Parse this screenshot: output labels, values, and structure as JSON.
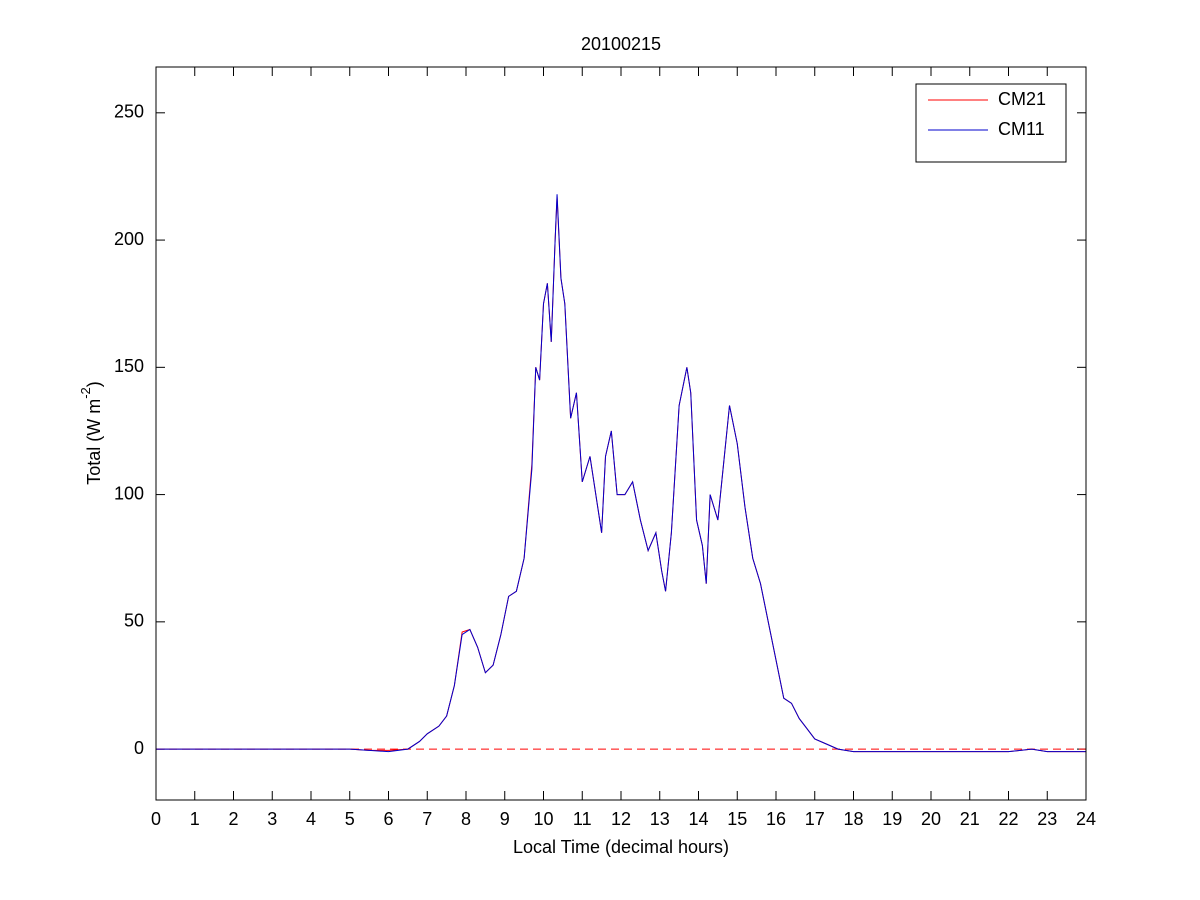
{
  "chart_data": {
    "type": "line",
    "title": "20100215",
    "xlabel": "Local Time (decimal hours)",
    "ylabel": [
      "Total (W m",
      "-2",
      ")"
    ],
    "x": [
      0,
      1,
      2,
      3,
      4,
      5,
      5.5,
      6,
      6.5,
      6.8,
      7,
      7.3,
      7.5,
      7.7,
      7.9,
      8.1,
      8.3,
      8.5,
      8.7,
      8.9,
      9.1,
      9.3,
      9.5,
      9.7,
      9.8,
      9.9,
      10,
      10.1,
      10.2,
      10.3,
      10.35,
      10.45,
      10.55,
      10.7,
      10.85,
      11,
      11.2,
      11.4,
      11.5,
      11.6,
      11.75,
      11.9,
      12.1,
      12.3,
      12.5,
      12.7,
      12.9,
      13.05,
      13.15,
      13.3,
      13.5,
      13.7,
      13.8,
      13.95,
      14.1,
      14.2,
      14.3,
      14.5,
      14.7,
      14.8,
      15,
      15.2,
      15.4,
      15.6,
      15.8,
      16,
      16.2,
      16.4,
      16.6,
      16.8,
      17,
      17.3,
      17.6,
      18,
      19,
      20,
      21,
      22,
      22.6,
      23,
      24
    ],
    "series": [
      {
        "name": "CM21",
        "color": "#ff0000",
        "values": [
          0,
          0,
          0,
          0,
          0,
          0,
          -0.5,
          -0.5,
          0,
          3,
          6,
          9,
          13,
          25,
          46,
          47,
          40,
          30,
          33,
          45,
          60,
          62,
          75,
          112,
          150,
          145,
          175,
          183,
          160,
          200,
          217,
          185,
          175,
          130,
          140,
          105,
          115,
          95,
          85,
          115,
          125,
          100,
          100,
          105,
          90,
          78,
          85,
          70,
          62,
          85,
          135,
          150,
          140,
          90,
          80,
          65,
          100,
          90,
          120,
          135,
          120,
          95,
          75,
          65,
          50,
          35,
          20,
          18,
          12,
          8,
          4,
          2,
          0,
          -1,
          -1,
          -1,
          -1,
          -1,
          0,
          -1,
          -1
        ]
      },
      {
        "name": "CM11",
        "color": "#0000cc",
        "values": [
          0,
          0,
          0,
          0,
          0,
          0,
          -0.5,
          -1,
          0,
          3,
          6,
          9,
          13,
          25,
          45,
          47,
          40,
          30,
          33,
          45,
          60,
          62,
          75,
          110,
          150,
          145,
          175,
          183,
          160,
          200,
          218,
          185,
          175,
          130,
          140,
          105,
          115,
          95,
          85,
          115,
          125,
          100,
          100,
          105,
          90,
          78,
          85,
          70,
          62,
          85,
          135,
          150,
          140,
          90,
          80,
          65,
          100,
          90,
          120,
          135,
          120,
          95,
          75,
          65,
          50,
          35,
          20,
          18,
          12,
          8,
          4,
          2,
          0,
          -1,
          -1,
          -1,
          -1,
          -1,
          0,
          -1,
          -1
        ]
      }
    ],
    "reference_line": {
      "y": 0,
      "color": "#ff0000",
      "style": "dashed"
    },
    "xlim": [
      0,
      24
    ],
    "xticks": [
      0,
      1,
      2,
      3,
      4,
      5,
      6,
      7,
      8,
      9,
      10,
      11,
      12,
      13,
      14,
      15,
      16,
      17,
      18,
      19,
      20,
      21,
      22,
      23,
      24
    ],
    "ylim": [
      -20,
      268
    ],
    "yticks": [
      0,
      50,
      100,
      150,
      200,
      250
    ],
    "legend": "northeast"
  }
}
